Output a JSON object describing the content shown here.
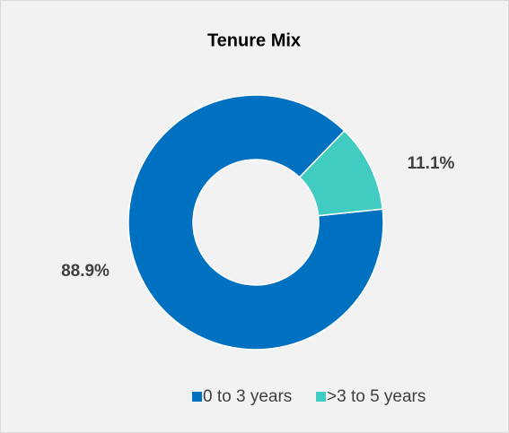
{
  "chart_data": {
    "type": "donut",
    "title": "Tenure Mix",
    "categories": [
      "0 to 3 years",
      ">3 to 5 years"
    ],
    "values": [
      88.9,
      11.1
    ],
    "value_labels": [
      "88.9%",
      "11.1%"
    ],
    "colors": [
      "#0070c0",
      "#40ccc0"
    ],
    "legend": "bottom"
  }
}
